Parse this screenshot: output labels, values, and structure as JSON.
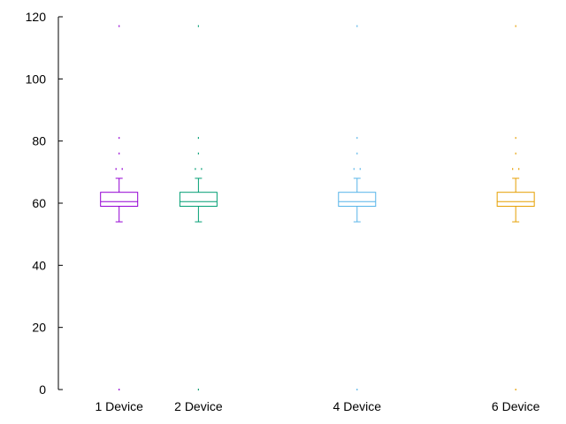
{
  "chart_data": {
    "type": "boxplot",
    "title": "",
    "xlabel": "",
    "ylabel": "",
    "ylim": [
      0,
      120
    ],
    "y_ticks": [
      0,
      20,
      40,
      60,
      80,
      100,
      120
    ],
    "x_range": [
      0,
      6.5
    ],
    "grid": false,
    "categories": [
      {
        "label": "1 Device",
        "x": 1,
        "color": "#9400d3",
        "min": 54,
        "q1": 59,
        "median": 60.5,
        "q3": 63.5,
        "max": 68,
        "outliers": [
          0,
          71,
          71,
          76,
          81,
          117
        ]
      },
      {
        "label": "2 Device",
        "x": 2,
        "color": "#009e73",
        "min": 54,
        "q1": 59,
        "median": 60.5,
        "q3": 63.5,
        "max": 68,
        "outliers": [
          0,
          71,
          71,
          76,
          81,
          117
        ]
      },
      {
        "label": "4 Device",
        "x": 4,
        "color": "#56b4e9",
        "min": 54,
        "q1": 59,
        "median": 60.5,
        "q3": 63.5,
        "max": 68,
        "outliers": [
          0,
          71,
          71,
          76,
          81,
          117
        ]
      },
      {
        "label": "6 Device",
        "x": 6,
        "color": "#e69f00",
        "min": 54,
        "q1": 59,
        "median": 60.5,
        "q3": 63.5,
        "max": 68,
        "outliers": [
          0,
          71,
          71,
          76,
          81,
          117
        ]
      }
    ]
  }
}
